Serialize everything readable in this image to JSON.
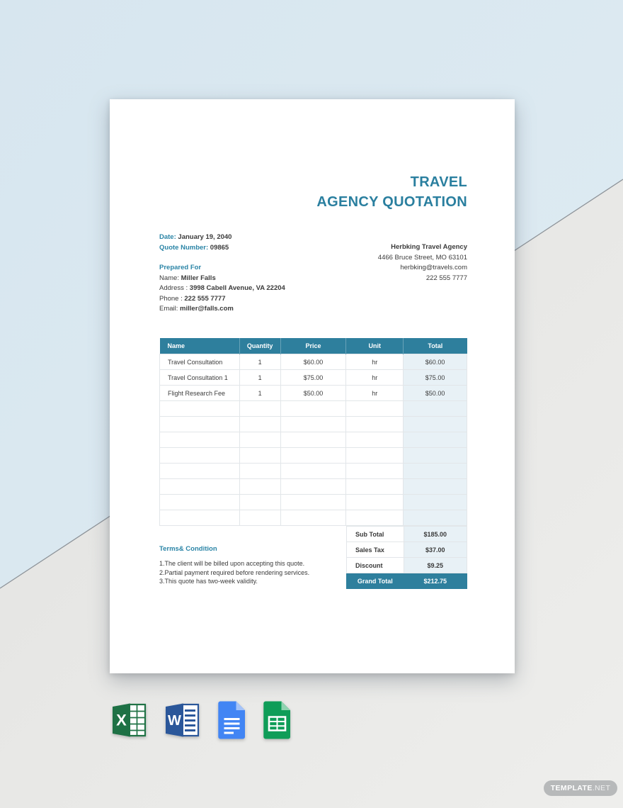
{
  "page": {
    "watermark_main": "TEMPLATE",
    "watermark_suffix": ".NET"
  },
  "colors": {
    "accent_teal": "#2e7f9d",
    "heading_teal": "#2a84a6",
    "total_column_tint": "#e8f1f6",
    "background_blue": "#dbe8f0",
    "background_gray": "#e9e9e7"
  },
  "document": {
    "title_line1": "TRAVEL",
    "title_line2": "AGENCY QUOTATION",
    "meta": {
      "date_label": "Date:",
      "date_value": "January 19, 2040",
      "quote_label": "Quote Number:",
      "quote_value": "09865"
    },
    "company": {
      "name": "Herbking Travel Agency",
      "address": "4466 Bruce Street, MO 63101",
      "email": "herbking@travels.com",
      "phone": "222 555 7777"
    },
    "prepared_for": {
      "heading": "Prepared For",
      "name_label": "Name:",
      "name": "Miller Falls",
      "address_label": "Address :",
      "address": "3998 Cabell Avenue, VA 22204",
      "phone_label": "Phone :",
      "phone": "222 555 7777",
      "email_label": "Email:",
      "email": "miller@falls.com"
    },
    "table": {
      "headers": [
        "Name",
        "Quantity",
        "Price",
        "Unit",
        "Total"
      ],
      "rows": [
        [
          "Travel Consultation",
          "1",
          "$60.00",
          "hr",
          "$60.00"
        ],
        [
          "Travel Consultation 1",
          "1",
          "$75.00",
          "hr",
          "$75.00"
        ],
        [
          "Flight Research Fee",
          "1",
          "$50.00",
          "hr",
          "$50.00"
        ]
      ],
      "empty_rows": 8
    },
    "totals": {
      "rows": [
        {
          "label": "Sub Total",
          "value": "$185.00"
        },
        {
          "label": "Sales Tax",
          "value": "$37.00"
        },
        {
          "label": "Discount",
          "value": "$9.25"
        }
      ],
      "grand": {
        "label": "Grand Total",
        "value": "$212.75"
      }
    },
    "terms": {
      "heading": "Terms& Condition",
      "items": [
        "1.The client will be billed upon accepting this quote.",
        "2.Partial payment required before rendering services.",
        "3.This quote has two-week validity."
      ]
    }
  },
  "footer": {
    "icons": [
      "excel-icon",
      "word-icon",
      "google-docs-icon",
      "google-sheets-icon"
    ]
  }
}
